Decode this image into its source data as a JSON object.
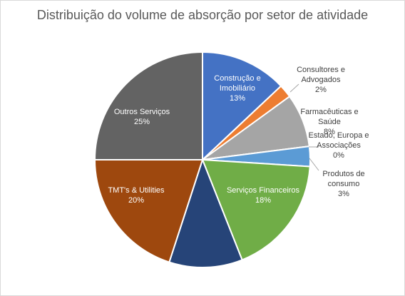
{
  "chart_data": {
    "type": "pie",
    "title": "Distribuição do volume de absorção por setor de atividade",
    "slices": [
      {
        "label": [
          "Construção e",
          "Imobiliário"
        ],
        "pct": "13%",
        "value": 13,
        "color": "#4472c4"
      },
      {
        "label": [
          "Consultores e",
          "Advogados"
        ],
        "pct": "2%",
        "value": 2,
        "color": "#ed7d31"
      },
      {
        "label": [
          "Farmacêuticas e",
          "Saúde"
        ],
        "pct": "8%",
        "value": 8,
        "color": "#a5a5a5"
      },
      {
        "label": [
          "Estado, Europa e",
          "Associações"
        ],
        "pct": "0%",
        "value": 0.0001,
        "color": "#ffc000"
      },
      {
        "label": [
          "Produtos de",
          "consumo"
        ],
        "pct": "3%",
        "value": 3,
        "color": "#5b9bd5"
      },
      {
        "label": [
          "Serviços Financeiros"
        ],
        "pct": "18%",
        "value": 18,
        "color": "#70ad47"
      },
      {
        "label": [],
        "pct": "",
        "value": 11,
        "color": "#264478"
      },
      {
        "label": [
          "TMT's & Utilities"
        ],
        "pct": "20%",
        "value": 20,
        "color": "#9e480e"
      },
      {
        "label": [
          "Outros Serviços"
        ],
        "pct": "25%",
        "value": 25,
        "color": "#636363"
      }
    ]
  }
}
